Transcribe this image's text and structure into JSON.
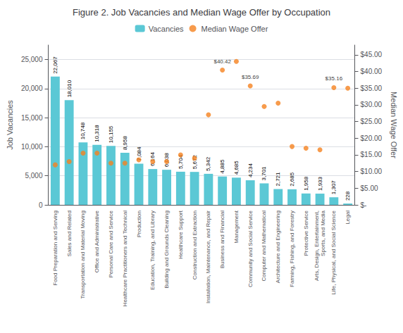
{
  "chart_data": {
    "type": "bar",
    "title": "Figure 2. Job Vacancies and Median Wage Offer by Occupation",
    "categories": [
      "Food Preparation and Serving",
      "Sales and Related",
      "Transportation and Material Moving",
      "Office and Administrative",
      "Personal Care and Service",
      "Healthcare Practitioners and Technical",
      "Production",
      "Education, Training, and Library",
      "Building and Grounds Cleaning",
      "Healthcare Support",
      "Construction and Extraction",
      "Installation, Maintenance, and Repair",
      "Business and Financial",
      "Management",
      "Community and Social Service",
      "Computer and Mathematical",
      "Architecture and Engineering",
      "Farming, Fishing, and Forestry",
      "Protective Service",
      "Arts, Design, Entertainment,\nSports, and Media",
      "Life, Physical, and Social Science",
      "Legal"
    ],
    "series": [
      {
        "name": "Vacancies",
        "type": "bar",
        "color": "#5bc8d5",
        "values": [
          22067,
          18010,
          10748,
          10318,
          10155,
          8958,
          7084,
          6164,
          6038,
          5704,
          5672,
          5342,
          4885,
          4685,
          4234,
          3701,
          2721,
          2685,
          1958,
          1933,
          1307,
          228
        ],
        "data_labels": true,
        "value_labels": [
          "22,067",
          "18,010",
          "10,748",
          "10,318",
          "10,155",
          "8,958",
          "7,084",
          "6,164",
          "6,038",
          "5,704",
          "5,672",
          "5,342",
          "4,885",
          "4,685",
          "4,234",
          "3,701",
          "2,721",
          "2,685",
          "1,958",
          "1,933",
          "1,307",
          "228"
        ]
      },
      {
        "name": "Median Wage Offer",
        "type": "scatter",
        "axis": "y2",
        "color": "#f5821f",
        "marker": "circle",
        "values": [
          12.0,
          13.0,
          15.5,
          15.5,
          12.5,
          12.5,
          13.5,
          13.0,
          13.0,
          15.0,
          14.0,
          27.0,
          40.42,
          43.0,
          35.69,
          29.5,
          30.5,
          17.5,
          17.0,
          16.5,
          35.16,
          35.0
        ],
        "data_labels": true,
        "value_labels": [
          null,
          null,
          null,
          null,
          null,
          null,
          null,
          null,
          null,
          null,
          null,
          null,
          "$40.42",
          null,
          "$35.69",
          null,
          null,
          null,
          null,
          null,
          "$35.16",
          null
        ]
      }
    ],
    "ylabel": "Job Vacancies",
    "y2label": "Median Wage Offer",
    "ylim": [
      0,
      27500
    ],
    "yticks": [
      0,
      {
        "value": 5000,
        "label": "5,000"
      },
      {
        "value": 10000,
        "label": "10,000"
      },
      {
        "value": 15000,
        "label": "15,000"
      },
      {
        "value": 20000,
        "label": "20,000"
      },
      {
        "value": 25000,
        "label": "25,000"
      }
    ],
    "y2lim": [
      0,
      47.917
    ],
    "y2ticks": [
      {
        "value": 0,
        "label": "$-"
      },
      {
        "value": 5,
        "label": "$5.00"
      },
      {
        "value": 10,
        "label": "$10.00"
      },
      {
        "value": 15,
        "label": "$15.00"
      },
      {
        "value": 20,
        "label": "$20.00"
      },
      {
        "value": 25,
        "label": "$25.00"
      },
      {
        "value": 30,
        "label": "$30.00"
      },
      {
        "value": 35,
        "label": "$35.00"
      },
      {
        "value": 40,
        "label": "$40.00"
      },
      {
        "value": 45,
        "label": "$45.00"
      }
    ],
    "grid": true,
    "legend": "top"
  }
}
